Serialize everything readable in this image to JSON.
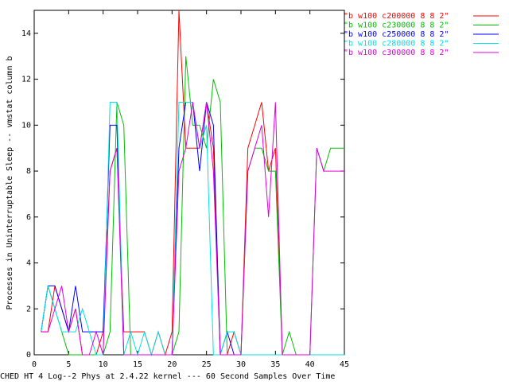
{
  "chart_data": {
    "type": "line",
    "xlabel": "CHED HT 4 Log--2 Phys at 2.4.22 kernel --- 60 Second Samples Over Time",
    "ylabel": "Processes in Uninterruptable Sleep -- vmstat column b",
    "x": [
      1,
      2,
      3,
      4,
      5,
      6,
      7,
      8,
      9,
      10,
      11,
      12,
      13,
      14,
      15,
      16,
      17,
      18,
      19,
      20,
      21,
      22,
      23,
      24,
      25,
      26,
      27,
      28,
      29,
      30,
      31,
      32,
      33,
      34,
      35,
      36,
      37,
      38,
      39,
      40,
      41,
      42,
      43,
      44,
      45
    ],
    "xlim": [
      0,
      45
    ],
    "xticks": [
      0,
      5,
      10,
      15,
      20,
      25,
      30,
      35,
      40,
      45
    ],
    "ylim": [
      0,
      15
    ],
    "yticks": [
      0,
      2,
      4,
      6,
      8,
      10,
      12,
      14
    ],
    "series": [
      {
        "name": "\"b w100 c200000 8 8 2\"",
        "color": "#ff0000",
        "values": [
          1,
          1,
          3,
          2,
          1,
          2,
          0,
          0,
          0,
          1,
          8,
          9,
          1,
          1,
          1,
          1,
          0,
          1,
          0,
          1,
          15,
          9,
          9,
          9,
          11,
          9,
          0,
          0,
          1,
          0,
          9,
          10,
          11,
          8,
          9,
          0,
          0,
          0,
          0,
          0,
          0,
          0,
          0,
          0,
          0
        ]
      },
      {
        "name": "\"b w100 c230000 8 8 2\"",
        "color": "#00c000",
        "values": [
          1,
          3,
          2,
          1,
          0,
          0,
          0,
          0,
          0,
          0,
          1,
          11,
          10,
          0,
          0,
          0,
          0,
          0,
          0,
          0,
          1,
          13,
          10,
          10,
          9,
          12,
          11,
          0,
          0,
          0,
          8,
          9,
          9,
          8,
          8,
          0,
          1,
          0,
          0,
          0,
          9,
          8,
          9,
          9,
          9
        ]
      },
      {
        "name": "\"b w100 c250000 8 8 2\"",
        "color": "#0000ff",
        "values": [
          1,
          3,
          3,
          2,
          1,
          3,
          1,
          1,
          1,
          1,
          10,
          10,
          0,
          0,
          0,
          0,
          0,
          0,
          0,
          0,
          9,
          11,
          11,
          8,
          11,
          10,
          0,
          1,
          0,
          0,
          0,
          0,
          0,
          0,
          0,
          0,
          0,
          0,
          0,
          0,
          0,
          0,
          0,
          0,
          0
        ]
      },
      {
        "name": "\"b w100 c280000 8 8 2\"",
        "color": "#00e0e0",
        "values": [
          1,
          3,
          2,
          1,
          1,
          1,
          2,
          1,
          0,
          0,
          11,
          11,
          0,
          1,
          0,
          1,
          0,
          1,
          0,
          0,
          11,
          11,
          11,
          9,
          10,
          0,
          0,
          1,
          1,
          0,
          0,
          0,
          0,
          0,
          0,
          0,
          0,
          0,
          0,
          0,
          0,
          0,
          0,
          0,
          0
        ]
      },
      {
        "name": "\"b w100 c300000 8 8 2\"",
        "color": "#e000e0",
        "values": [
          1,
          1,
          2,
          3,
          1,
          2,
          0,
          0,
          1,
          0,
          8,
          9,
          0,
          0,
          0,
          0,
          0,
          0,
          0,
          0,
          8,
          9,
          11,
          9,
          11,
          8,
          0,
          0,
          0,
          0,
          8,
          9,
          10,
          6,
          11,
          0,
          0,
          0,
          0,
          0,
          9,
          8,
          8,
          8,
          8
        ]
      }
    ]
  }
}
